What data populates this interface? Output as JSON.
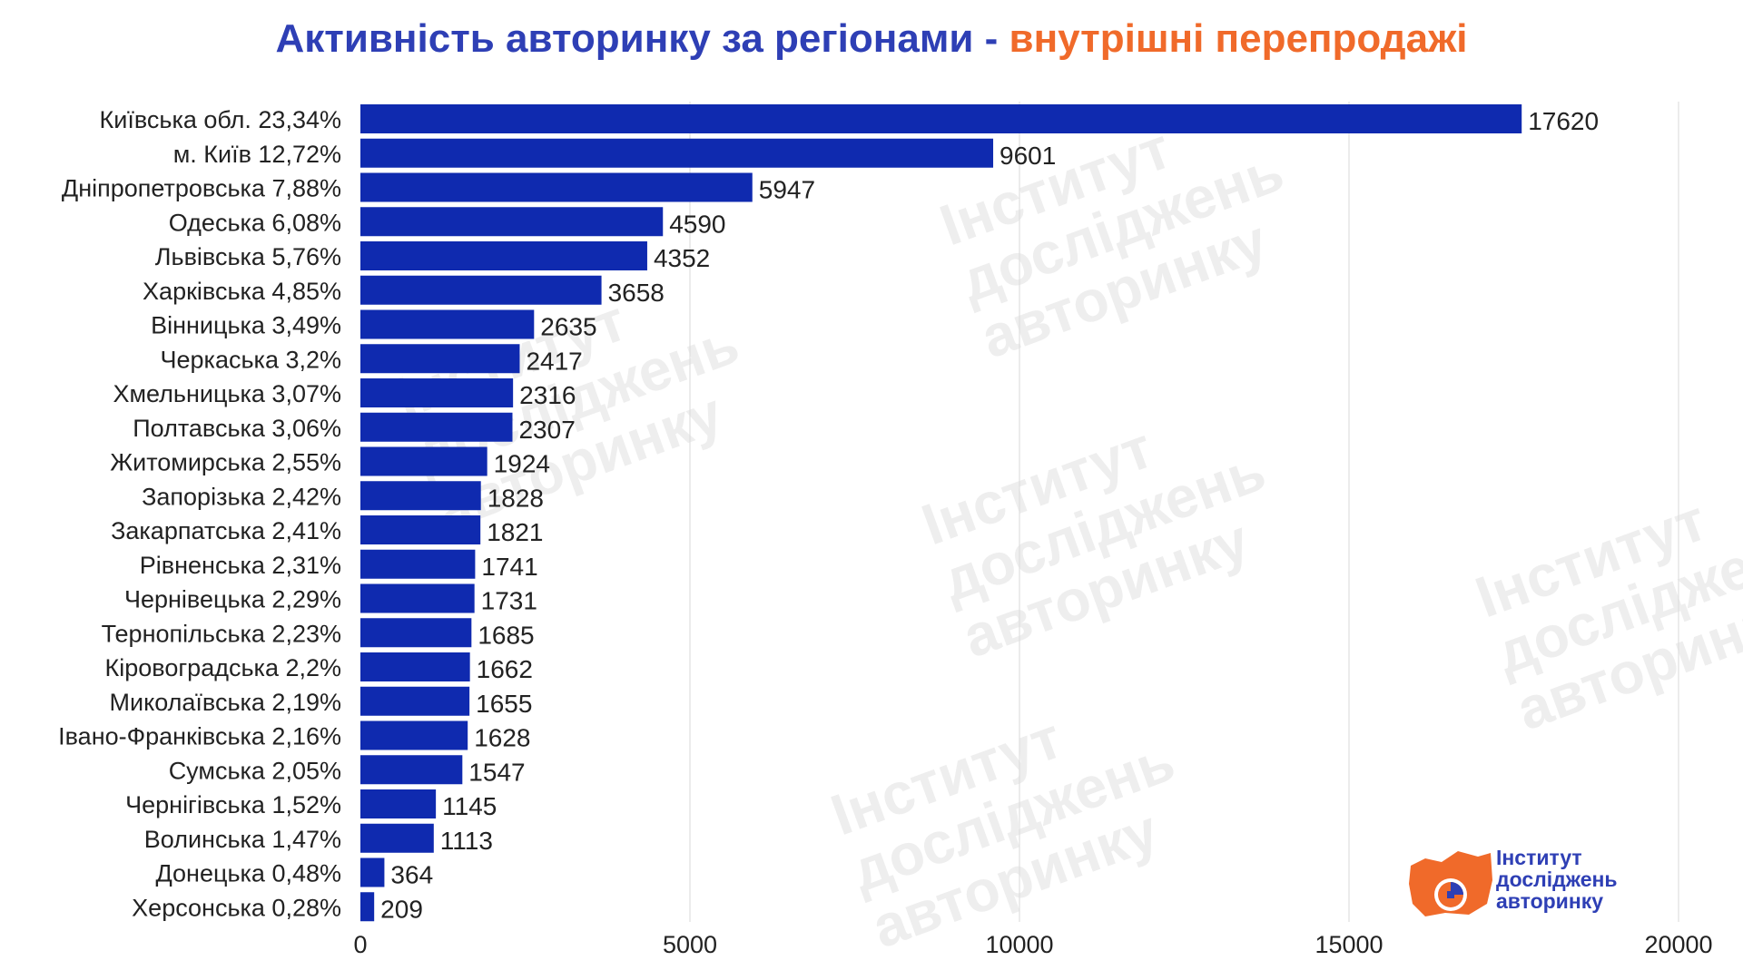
{
  "title": {
    "part1": "Активність авторинку за регіонами -",
    "part2": "внутрішні перепродажі"
  },
  "colors": {
    "bar": "#0f2aaf",
    "title_main": "#2e3fb5",
    "title_accent": "#f06a2a",
    "logo_orange": "#f06a2a",
    "logo_blue": "#2e3fb5"
  },
  "chart_data": {
    "type": "bar",
    "orientation": "horizontal",
    "categories": [
      "Київська обл. 23,34%",
      "м. Київ 12,72%",
      "Дніпропетровська 7,88%",
      "Одеська 6,08%",
      "Львівська 5,76%",
      "Харківська 4,85%",
      "Вінницька 3,49%",
      "Черкаська 3,2%",
      "Хмельницька 3,07%",
      "Полтавська 3,06%",
      "Житомирська 2,55%",
      "Запорізька 2,42%",
      "Закарпатська 2,41%",
      "Рівненська 2,31%",
      "Чернівецька 2,29%",
      "Тернопільська 2,23%",
      "Кіровоградська 2,2%",
      "Миколаївська 2,19%",
      "Івано-Франківська 2,16%",
      "Сумська 2,05%",
      "Чернігівська 1,52%",
      "Волинська 1,47%",
      "Донецька 0,48%",
      "Херсонська 0,28%"
    ],
    "values": [
      17620,
      9601,
      5947,
      4590,
      4352,
      3658,
      2635,
      2417,
      2316,
      2307,
      1924,
      1828,
      1821,
      1741,
      1731,
      1685,
      1662,
      1655,
      1628,
      1547,
      1145,
      1113,
      364,
      209
    ],
    "xlim": [
      0,
      20000
    ],
    "xticks": [
      0,
      5000,
      10000,
      15000,
      20000
    ],
    "grid": "vertical",
    "data_labels": true
  },
  "watermark": {
    "line1": "Інститут",
    "line2": "досліджень",
    "line3": "авторинку"
  },
  "logo": {
    "line1": "Інститут",
    "line2": "досліджень",
    "line3": "авторинку"
  }
}
